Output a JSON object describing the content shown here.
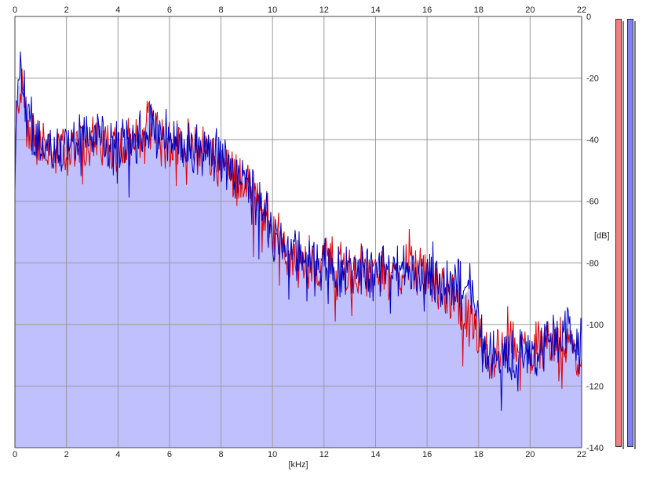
{
  "chart_data": {
    "type": "area",
    "xlabel": "[kHz]",
    "ylabel": "[dB]",
    "xlim": [
      0,
      22
    ],
    "ylim": [
      -140,
      0
    ],
    "x_ticks_top": [
      "0",
      "2",
      "4",
      "6",
      "8",
      "10",
      "12",
      "14",
      "16",
      "18",
      "20",
      "22"
    ],
    "x_ticks_bottom": [
      "0",
      "2",
      "4",
      "6",
      "8",
      "10",
      "12",
      "14",
      "16",
      "18",
      "20",
      "22"
    ],
    "y_ticks": [
      "0",
      "-20",
      "-40",
      "-60",
      "-80",
      "-100",
      "-120",
      "-140"
    ],
    "grid": true,
    "series": [
      {
        "color": "#e00000",
        "envelope_khz": [
          0,
          0.1,
          0.25,
          0.5,
          1,
          1.5,
          2,
          2.5,
          3,
          3.5,
          4,
          4.5,
          5,
          5.3,
          5.6,
          6,
          6.5,
          7,
          7.5,
          8,
          8.5,
          9,
          9.5,
          10,
          10.5,
          11,
          11.5,
          12,
          12.5,
          13,
          13.5,
          14,
          14.5,
          15,
          15.5,
          16,
          16.5,
          17,
          17.5,
          17.8,
          18.2,
          18.5,
          19,
          19.5,
          20,
          20.5,
          21,
          21.5,
          22
        ],
        "envelope_db": [
          -50,
          -28,
          -22,
          -36,
          -42,
          -44,
          -44,
          -42,
          -40,
          -41,
          -43,
          -42,
          -41,
          -32,
          -39,
          -41,
          -42,
          -43,
          -44,
          -48,
          -52,
          -55,
          -58,
          -70,
          -78,
          -80,
          -80,
          -79,
          -80,
          -82,
          -82,
          -83,
          -84,
          -83,
          -82,
          -85,
          -87,
          -93,
          -98,
          -100,
          -110,
          -110,
          -108,
          -108,
          -108,
          -108,
          -106,
          -106,
          -110
        ]
      },
      {
        "color": "#0000c0",
        "envelope_khz": [
          0,
          0.1,
          0.25,
          0.5,
          1,
          1.5,
          2,
          2.5,
          3,
          3.5,
          4,
          4.5,
          5,
          5.3,
          5.6,
          6,
          6.5,
          7,
          7.5,
          8,
          8.5,
          9,
          9.5,
          10,
          10.5,
          11,
          11.5,
          12,
          12.5,
          13,
          13.5,
          14,
          14.5,
          15,
          15.5,
          16,
          16.5,
          17,
          17.5,
          17.8,
          18.2,
          18.5,
          19,
          19.5,
          20,
          20.5,
          21,
          21.5,
          22
        ],
        "envelope_db": [
          -48,
          -26,
          -15,
          -34,
          -41,
          -43,
          -43,
          -40,
          -38,
          -40,
          -42,
          -41,
          -40,
          -36,
          -38,
          -40,
          -41,
          -42,
          -43,
          -46,
          -50,
          -54,
          -57,
          -70,
          -76,
          -78,
          -79,
          -80,
          -81,
          -83,
          -83,
          -83,
          -83,
          -82,
          -82,
          -84,
          -86,
          -88,
          -85,
          -90,
          -109,
          -109,
          -110,
          -110,
          -109,
          -109,
          -104,
          -104,
          -108
        ]
      }
    ],
    "fill_color": "#c0c0ff",
    "level_meters": [
      {
        "color": "#f08080",
        "level_db": 0
      },
      {
        "color": "#8080f0",
        "level_db": 0
      }
    ]
  }
}
